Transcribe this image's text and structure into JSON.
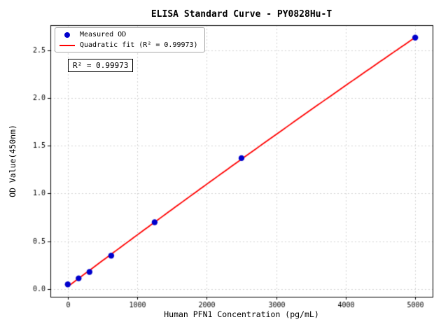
{
  "chart_data": {
    "type": "scatter",
    "title": "ELISA Standard Curve - PY0828Hu-T",
    "xlabel": "Human PFN1 Concentration (pg/mL)",
    "ylabel": "OD Value(450nm)",
    "x_ticks": [
      0,
      1000,
      2000,
      3000,
      4000,
      5000
    ],
    "y_ticks": [
      0.0,
      0.5,
      1.0,
      1.5,
      2.0,
      2.5
    ],
    "xlim": [
      -250,
      5250
    ],
    "ylim": [
      -0.08,
      2.76
    ],
    "grid": true,
    "legend_position": "upper left",
    "annotation": "R² = 0.99973",
    "series": [
      {
        "name": "Measured OD",
        "kind": "scatter",
        "color": "#0000cd",
        "x": [
          0,
          156.25,
          312.5,
          625,
          1250,
          2500,
          5000
        ],
        "y": [
          0.05,
          0.113,
          0.18,
          0.35,
          0.7,
          1.37,
          2.63
        ]
      },
      {
        "name": "Quadratic fit (R² = 0.99973)",
        "kind": "line",
        "color": "#ff0000",
        "fit": "quadratic",
        "x_range": [
          0,
          5000
        ]
      }
    ],
    "colors": {
      "grid": "#c9c9c9",
      "axis": "#000000",
      "background": "#ffffff"
    }
  }
}
